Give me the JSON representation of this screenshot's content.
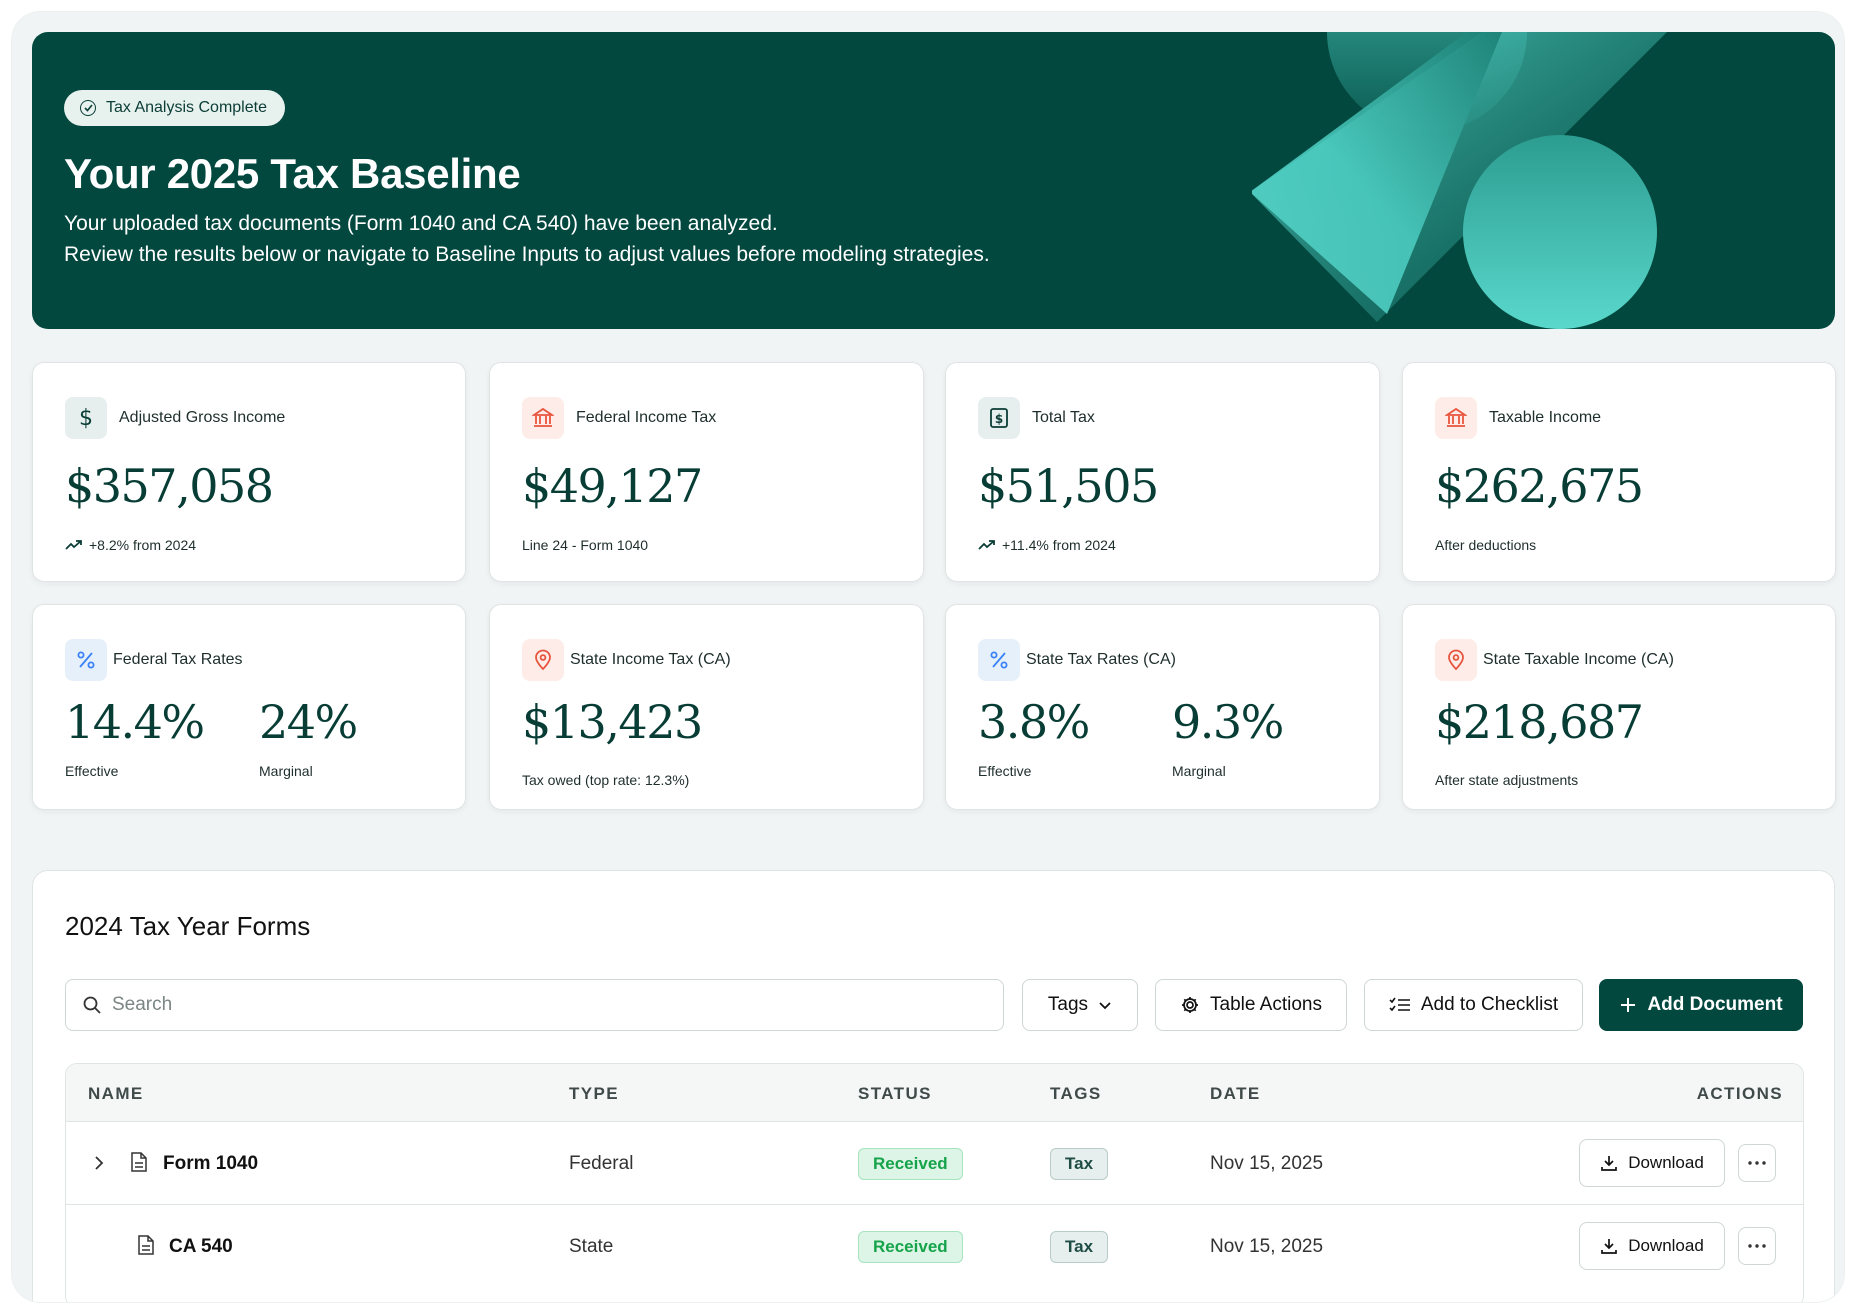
{
  "hero": {
    "badge": "Tax Analysis Complete",
    "title": "Your 2025 Tax Baseline",
    "line1": "Your uploaded tax documents (Form 1040 and CA 540) have been analyzed.",
    "line2": "Review the results below or navigate to Baseline Inputs to adjust values before modeling strategies."
  },
  "cards": {
    "agi": {
      "label": "Adjusted Gross Income",
      "value": "$357,058",
      "sub": "+8.2% from 2024",
      "icon": "dollar-icon"
    },
    "fit": {
      "label": "Federal Income Tax",
      "value": "$49,127",
      "sub": "Line 24 - Form 1040",
      "icon": "bank-icon"
    },
    "total": {
      "label": "Total Tax",
      "value": "$51,505",
      "sub": "+11.4% from 2024",
      "icon": "receipt-dollar-icon"
    },
    "taxable": {
      "label": "Taxable Income",
      "value": "$262,675",
      "sub": "After deductions",
      "icon": "bank-icon"
    },
    "fedrates": {
      "label": "Federal Tax Rates",
      "effective": "14.4%",
      "effective_label": "Effective",
      "marginal": "24%",
      "marginal_label": "Marginal",
      "icon": "percent-icon"
    },
    "stateit": {
      "label": "State Income Tax (CA)",
      "value": "$13,423",
      "sub": "Tax owed (top rate: 12.3%)",
      "icon": "map-pin-icon"
    },
    "staterates": {
      "label": "State Tax Rates (CA)",
      "effective": "3.8%",
      "effective_label": "Effective",
      "marginal": "9.3%",
      "marginal_label": "Marginal",
      "icon": "percent-icon"
    },
    "statetaxable": {
      "label": "State Taxable Income (CA)",
      "value": "$218,687",
      "sub": "After state adjustments",
      "icon": "map-pin-icon"
    }
  },
  "forms": {
    "title": "2024 Tax Year Forms",
    "search_placeholder": "Search",
    "tags_label": "Tags",
    "table_actions_label": "Table Actions",
    "checklist_label": "Add to Checklist",
    "add_doc_label": "Add Document",
    "columns": [
      "NAME",
      "TYPE",
      "STATUS",
      "TAGS",
      "DATE",
      "ACTIONS"
    ],
    "rows": [
      {
        "name": "Form 1040",
        "type": "Federal",
        "status": "Received",
        "tag": "Tax",
        "date": "Nov 15, 2025",
        "action": "Download"
      },
      {
        "name": "CA 540",
        "type": "State",
        "status": "Received",
        "tag": "Tax",
        "date": "Nov 15, 2025",
        "action": "Download"
      }
    ]
  },
  "colors": {
    "brand": "#02483f",
    "accent": "#5ad8cc",
    "success": "#16a34a",
    "icon_red": "#e8553e",
    "icon_blue": "#3b82f6"
  }
}
